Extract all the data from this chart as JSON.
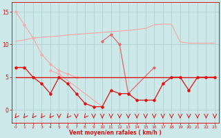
{
  "x": [
    0,
    1,
    2,
    3,
    4,
    5,
    6,
    7,
    8,
    9,
    10,
    11,
    12,
    13,
    14,
    15,
    16,
    17,
    18,
    19,
    20,
    21,
    22,
    23
  ],
  "series_gust_trend": [
    10.5,
    10.7,
    11.0,
    11.1,
    11.2,
    11.3,
    11.45,
    11.55,
    11.65,
    11.75,
    11.85,
    11.95,
    12.05,
    12.15,
    12.3,
    12.45,
    13.0,
    13.1,
    13.1,
    10.4,
    10.2,
    10.2,
    10.2,
    10.2
  ],
  "series_gust_high": [
    15,
    13,
    11.0,
    8.5,
    7.0,
    6.0,
    5.5,
    5.0,
    null,
    null,
    null,
    null,
    null,
    null,
    null,
    null,
    null,
    null,
    null,
    null,
    null,
    null,
    null,
    null
  ],
  "series_gust_mid": [
    null,
    null,
    null,
    null,
    6.0,
    5.5,
    null,
    null,
    null,
    null,
    0.5,
    null,
    null,
    null,
    null,
    null,
    null,
    null,
    null,
    null,
    null,
    null,
    null,
    null
  ],
  "series_gust_spike": [
    null,
    null,
    null,
    null,
    null,
    null,
    null,
    null,
    null,
    null,
    10.5,
    11.5,
    10.0,
    2.5,
    null,
    null,
    6.5,
    null,
    null,
    null,
    null,
    null,
    null,
    null
  ],
  "series_wind_mean": [
    6.5,
    6.5,
    5.0,
    4.0,
    2.5,
    5.0,
    4.0,
    2.5,
    1.0,
    0.5,
    0.5,
    3.0,
    2.5,
    2.5,
    1.5,
    1.5,
    1.5,
    4.0,
    5.0,
    5.0,
    3.0,
    5.0,
    5.0,
    5.0
  ],
  "series_mean_flat": [
    5.0,
    5.0,
    5.0,
    5.0,
    5.0,
    5.0,
    5.0,
    5.0,
    5.0,
    5.0,
    5.0,
    5.0,
    5.0,
    5.0,
    5.0,
    5.0,
    5.0,
    5.0,
    5.0,
    5.0,
    5.0,
    5.0,
    5.0,
    5.0
  ],
  "series_gust_start": [
    6.5,
    6.5,
    null,
    null,
    null,
    null,
    null,
    null,
    null,
    null,
    null,
    null,
    null,
    null,
    null,
    null,
    null,
    null,
    null,
    null,
    null,
    null,
    null,
    null
  ],
  "arrow_diagonal_x": [
    0,
    1,
    2,
    3,
    4,
    6,
    8
  ],
  "arrow_down_x": [
    5,
    7,
    9,
    10,
    11,
    12,
    13,
    14,
    15,
    16,
    17,
    18,
    19,
    20,
    21,
    22,
    23
  ],
  "bg_color": "#cce8e8",
  "grid_color": "#aacccc",
  "color_light_pink": "#f5aaaa",
  "color_medium_pink": "#e06868",
  "color_red": "#dd1111",
  "color_dark": "#aa0000",
  "axis_label": "Vent moyen/en rafales ( km/h )",
  "yticks": [
    0,
    5,
    10,
    15
  ],
  "xticks": [
    0,
    1,
    2,
    3,
    4,
    5,
    6,
    7,
    8,
    9,
    10,
    11,
    12,
    13,
    14,
    15,
    16,
    17,
    18,
    19,
    20,
    21,
    22,
    23
  ],
  "ylim": [
    -2.0,
    16.5
  ],
  "xlim": [
    -0.5,
    23.5
  ],
  "figsize": [
    3.2,
    2.0
  ],
  "dpi": 100
}
